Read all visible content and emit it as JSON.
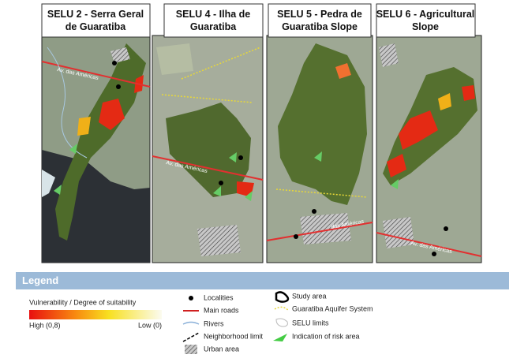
{
  "panels": [
    {
      "title_lines": [
        "SELU 2 - Serra Geral",
        "de Guaratiba"
      ],
      "road_label": "Av. das Américas"
    },
    {
      "title_lines": [
        "SELU 4 - Ilha de",
        "Guaratiba"
      ],
      "road_label": "Av. das Américas"
    },
    {
      "title_lines": [
        "SELU 5 - Pedra de",
        "Guaratiba Slope"
      ],
      "road_label": "das Américas"
    },
    {
      "title_lines": [
        "SELU 6 - Agricultural",
        "Slope"
      ],
      "road_label": "Av. das Américas"
    }
  ],
  "legend": {
    "title": "Legend",
    "gradient_title": "Vulnerability / Degree of suitability",
    "high_label": "High (0,8)",
    "low_label": "Low (0)",
    "items": [
      "Localities",
      "Main roads",
      "Rivers",
      "Neighborhood limit",
      "Urban area",
      "Study area",
      "Guaratiba Aquifer System",
      "SELU limits",
      "Indication of risk area"
    ]
  }
}
